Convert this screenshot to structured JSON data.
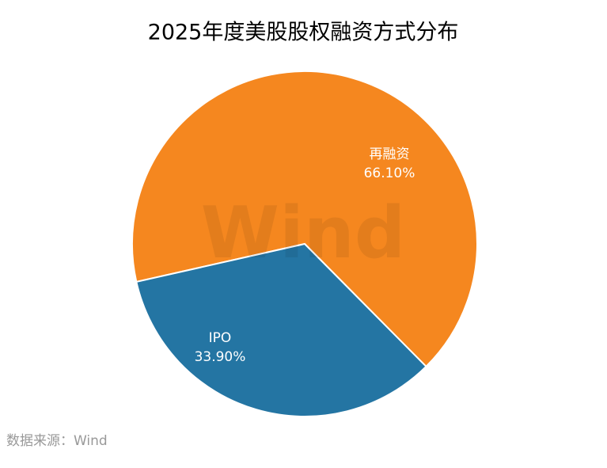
{
  "chart_data": {
    "type": "pie",
    "title": "2025年度美股股权融资方式分布",
    "categories": [
      "再融资",
      "IPO"
    ],
    "values": [
      66.1,
      33.9
    ],
    "value_labels": [
      "66.10%",
      "33.90%"
    ],
    "colors": [
      "#F5871F",
      "#2475A3"
    ],
    "watermark": "Wind",
    "source": "数据来源：Wind"
  }
}
